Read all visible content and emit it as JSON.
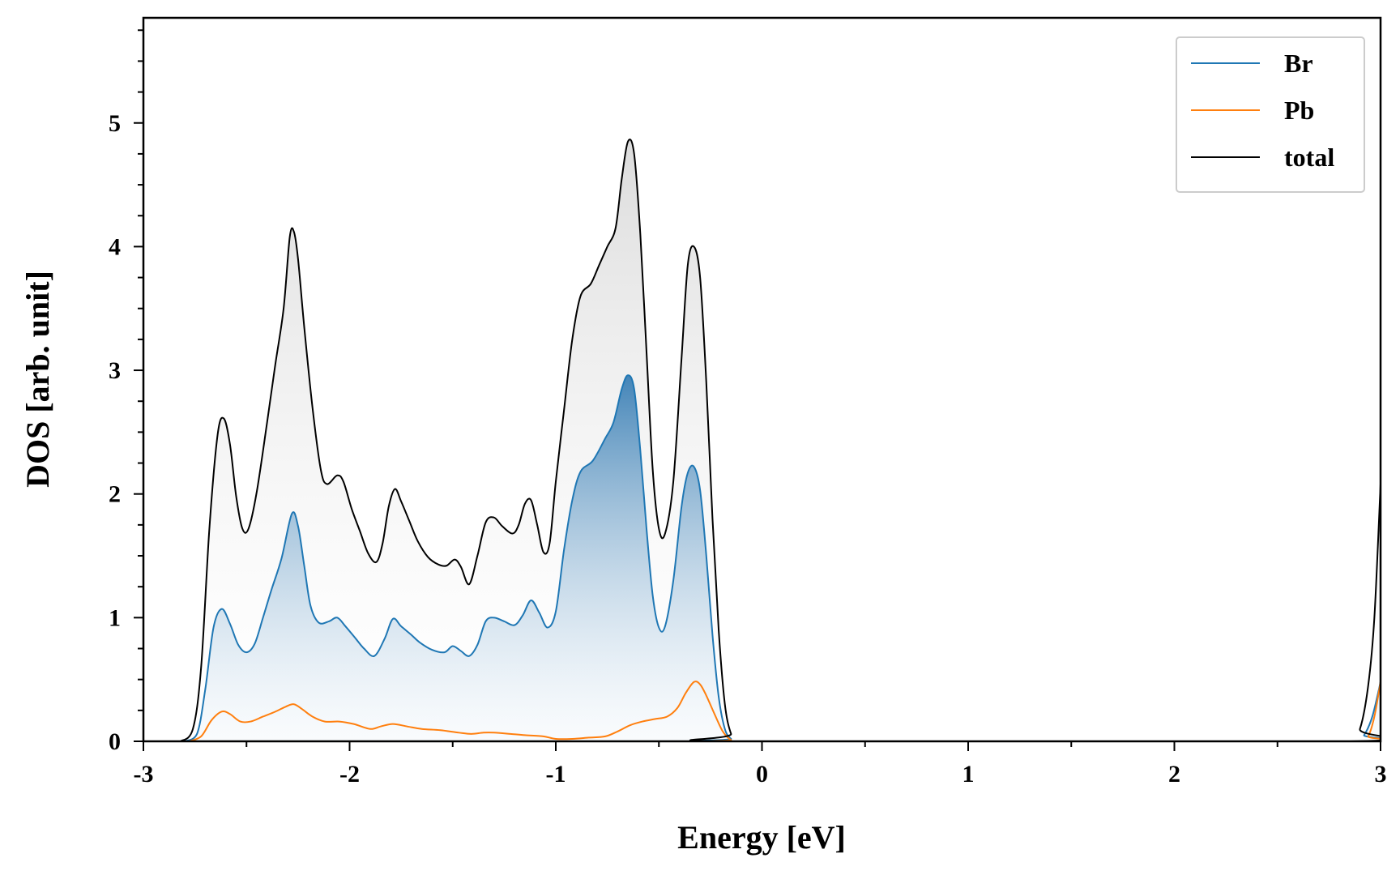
{
  "chart_data": {
    "type": "area",
    "xlabel": "Energy [eV]",
    "ylabel": "DOS [arb. unit]",
    "xlim": [
      -3,
      3
    ],
    "ylim": [
      0,
      5.85
    ],
    "xticks": [
      -3,
      -2,
      -1,
      0,
      1,
      2,
      3
    ],
    "xtick_labels": [
      "-3",
      "-2",
      "-1",
      "0",
      "1",
      "2",
      "3"
    ],
    "yticks": [
      0,
      1,
      2,
      3,
      4,
      5
    ],
    "ytick_labels": [
      "0",
      "1",
      "2",
      "3",
      "4",
      "5"
    ],
    "x_minor_step": 0.5,
    "y_minor_step": 0.25,
    "grid": false,
    "legend_position": "top-right",
    "series": [
      {
        "name": "Br",
        "color": "#1f77b4",
        "filled": true,
        "points": [
          [
            -2.8,
            0
          ],
          [
            -2.74,
            0.06
          ],
          [
            -2.7,
            0.42
          ],
          [
            -2.66,
            0.92
          ],
          [
            -2.62,
            1.07
          ],
          [
            -2.58,
            0.95
          ],
          [
            -2.54,
            0.78
          ],
          [
            -2.5,
            0.72
          ],
          [
            -2.46,
            0.79
          ],
          [
            -2.42,
            1.0
          ],
          [
            -2.38,
            1.22
          ],
          [
            -2.33,
            1.48
          ],
          [
            -2.28,
            1.84
          ],
          [
            -2.25,
            1.74
          ],
          [
            -2.22,
            1.42
          ],
          [
            -2.19,
            1.1
          ],
          [
            -2.15,
            0.96
          ],
          [
            -2.1,
            0.97
          ],
          [
            -2.06,
            1.0
          ],
          [
            -2.02,
            0.93
          ],
          [
            -1.97,
            0.83
          ],
          [
            -1.93,
            0.75
          ],
          [
            -1.88,
            0.69
          ],
          [
            -1.83,
            0.83
          ],
          [
            -1.79,
            0.99
          ],
          [
            -1.75,
            0.93
          ],
          [
            -1.7,
            0.86
          ],
          [
            -1.66,
            0.8
          ],
          [
            -1.6,
            0.74
          ],
          [
            -1.54,
            0.72
          ],
          [
            -1.5,
            0.77
          ],
          [
            -1.46,
            0.73
          ],
          [
            -1.42,
            0.69
          ],
          [
            -1.38,
            0.78
          ],
          [
            -1.34,
            0.97
          ],
          [
            -1.3,
            1.0
          ],
          [
            -1.25,
            0.97
          ],
          [
            -1.2,
            0.94
          ],
          [
            -1.16,
            1.02
          ],
          [
            -1.12,
            1.14
          ],
          [
            -1.08,
            1.04
          ],
          [
            -1.04,
            0.92
          ],
          [
            -1.0,
            1.05
          ],
          [
            -0.96,
            1.55
          ],
          [
            -0.92,
            1.95
          ],
          [
            -0.88,
            2.18
          ],
          [
            -0.82,
            2.27
          ],
          [
            -0.76,
            2.45
          ],
          [
            -0.72,
            2.58
          ],
          [
            -0.68,
            2.85
          ],
          [
            -0.65,
            2.96
          ],
          [
            -0.62,
            2.85
          ],
          [
            -0.59,
            2.35
          ],
          [
            -0.56,
            1.72
          ],
          [
            -0.53,
            1.18
          ],
          [
            -0.5,
            0.92
          ],
          [
            -0.47,
            0.93
          ],
          [
            -0.43,
            1.3
          ],
          [
            -0.39,
            1.9
          ],
          [
            -0.36,
            2.17
          ],
          [
            -0.33,
            2.22
          ],
          [
            -0.3,
            2.03
          ],
          [
            -0.27,
            1.5
          ],
          [
            -0.24,
            0.86
          ],
          [
            -0.21,
            0.36
          ],
          [
            -0.18,
            0.1
          ],
          [
            -0.15,
            0.02
          ],
          [
            -0.12,
            0
          ],
          [
            2.88,
            0
          ],
          [
            2.92,
            0.05
          ],
          [
            2.96,
            0.2
          ],
          [
            3.0,
            0.48
          ]
        ]
      },
      {
        "name": "Pb",
        "color": "#ff7f0e",
        "filled": false,
        "points": [
          [
            -2.78,
            0
          ],
          [
            -2.72,
            0.04
          ],
          [
            -2.67,
            0.17
          ],
          [
            -2.62,
            0.24
          ],
          [
            -2.58,
            0.22
          ],
          [
            -2.53,
            0.16
          ],
          [
            -2.48,
            0.16
          ],
          [
            -2.42,
            0.2
          ],
          [
            -2.36,
            0.24
          ],
          [
            -2.31,
            0.28
          ],
          [
            -2.27,
            0.3
          ],
          [
            -2.23,
            0.26
          ],
          [
            -2.18,
            0.2
          ],
          [
            -2.12,
            0.16
          ],
          [
            -2.05,
            0.16
          ],
          [
            -1.98,
            0.14
          ],
          [
            -1.9,
            0.1
          ],
          [
            -1.85,
            0.12
          ],
          [
            -1.79,
            0.14
          ],
          [
            -1.72,
            0.12
          ],
          [
            -1.65,
            0.1
          ],
          [
            -1.56,
            0.09
          ],
          [
            -1.47,
            0.07
          ],
          [
            -1.41,
            0.06
          ],
          [
            -1.35,
            0.07
          ],
          [
            -1.3,
            0.07
          ],
          [
            -1.22,
            0.06
          ],
          [
            -1.15,
            0.05
          ],
          [
            -1.06,
            0.04
          ],
          [
            -1.0,
            0.02
          ],
          [
            -0.92,
            0.02
          ],
          [
            -0.84,
            0.03
          ],
          [
            -0.76,
            0.04
          ],
          [
            -0.7,
            0.08
          ],
          [
            -0.64,
            0.13
          ],
          [
            -0.58,
            0.16
          ],
          [
            -0.52,
            0.18
          ],
          [
            -0.46,
            0.2
          ],
          [
            -0.41,
            0.27
          ],
          [
            -0.37,
            0.39
          ],
          [
            -0.33,
            0.48
          ],
          [
            -0.3,
            0.46
          ],
          [
            -0.27,
            0.37
          ],
          [
            -0.23,
            0.22
          ],
          [
            -0.19,
            0.08
          ],
          [
            -0.15,
            0.01
          ],
          [
            -0.12,
            0
          ],
          [
            2.9,
            0
          ],
          [
            2.94,
            0.04
          ],
          [
            2.97,
            0.2
          ],
          [
            3.0,
            0.48
          ]
        ]
      },
      {
        "name": "total",
        "color": "#000000",
        "filled": true,
        "points": [
          [
            -2.82,
            0
          ],
          [
            -2.76,
            0.1
          ],
          [
            -2.72,
            0.6
          ],
          [
            -2.68,
            1.72
          ],
          [
            -2.64,
            2.48
          ],
          [
            -2.61,
            2.61
          ],
          [
            -2.58,
            2.4
          ],
          [
            -2.55,
            1.98
          ],
          [
            -2.52,
            1.72
          ],
          [
            -2.49,
            1.72
          ],
          [
            -2.45,
            2.02
          ],
          [
            -2.4,
            2.58
          ],
          [
            -2.36,
            3.05
          ],
          [
            -2.32,
            3.5
          ],
          [
            -2.29,
            4.08
          ],
          [
            -2.27,
            4.12
          ],
          [
            -2.25,
            3.9
          ],
          [
            -2.22,
            3.35
          ],
          [
            -2.18,
            2.7
          ],
          [
            -2.14,
            2.2
          ],
          [
            -2.11,
            2.08
          ],
          [
            -2.06,
            2.15
          ],
          [
            -2.03,
            2.1
          ],
          [
            -1.99,
            1.88
          ],
          [
            -1.95,
            1.7
          ],
          [
            -1.91,
            1.52
          ],
          [
            -1.87,
            1.45
          ],
          [
            -1.84,
            1.6
          ],
          [
            -1.81,
            1.9
          ],
          [
            -1.78,
            2.04
          ],
          [
            -1.75,
            1.94
          ],
          [
            -1.71,
            1.78
          ],
          [
            -1.67,
            1.62
          ],
          [
            -1.62,
            1.49
          ],
          [
            -1.57,
            1.43
          ],
          [
            -1.53,
            1.42
          ],
          [
            -1.49,
            1.47
          ],
          [
            -1.46,
            1.41
          ],
          [
            -1.42,
            1.27
          ],
          [
            -1.38,
            1.5
          ],
          [
            -1.34,
            1.77
          ],
          [
            -1.3,
            1.81
          ],
          [
            -1.26,
            1.74
          ],
          [
            -1.21,
            1.68
          ],
          [
            -1.18,
            1.75
          ],
          [
            -1.15,
            1.92
          ],
          [
            -1.12,
            1.95
          ],
          [
            -1.09,
            1.75
          ],
          [
            -1.06,
            1.53
          ],
          [
            -1.03,
            1.6
          ],
          [
            -1.0,
            2.1
          ],
          [
            -0.96,
            2.68
          ],
          [
            -0.92,
            3.25
          ],
          [
            -0.88,
            3.6
          ],
          [
            -0.83,
            3.7
          ],
          [
            -0.79,
            3.85
          ],
          [
            -0.75,
            4.0
          ],
          [
            -0.71,
            4.15
          ],
          [
            -0.68,
            4.55
          ],
          [
            -0.65,
            4.85
          ],
          [
            -0.62,
            4.75
          ],
          [
            -0.59,
            4.1
          ],
          [
            -0.56,
            3.15
          ],
          [
            -0.53,
            2.2
          ],
          [
            -0.5,
            1.72
          ],
          [
            -0.47,
            1.68
          ],
          [
            -0.43,
            2.1
          ],
          [
            -0.39,
            3.1
          ],
          [
            -0.36,
            3.85
          ],
          [
            -0.33,
            4.0
          ],
          [
            -0.3,
            3.75
          ],
          [
            -0.27,
            2.9
          ],
          [
            -0.24,
            1.8
          ],
          [
            -0.21,
            0.9
          ],
          [
            -0.18,
            0.3
          ],
          [
            -0.15,
            0.06
          ],
          [
            -0.12,
            0
          ],
          [
            2.85,
            0
          ],
          [
            2.9,
            0.1
          ],
          [
            2.94,
            0.45
          ],
          [
            2.97,
            1.0
          ],
          [
            3.0,
            2.08
          ]
        ]
      }
    ]
  }
}
